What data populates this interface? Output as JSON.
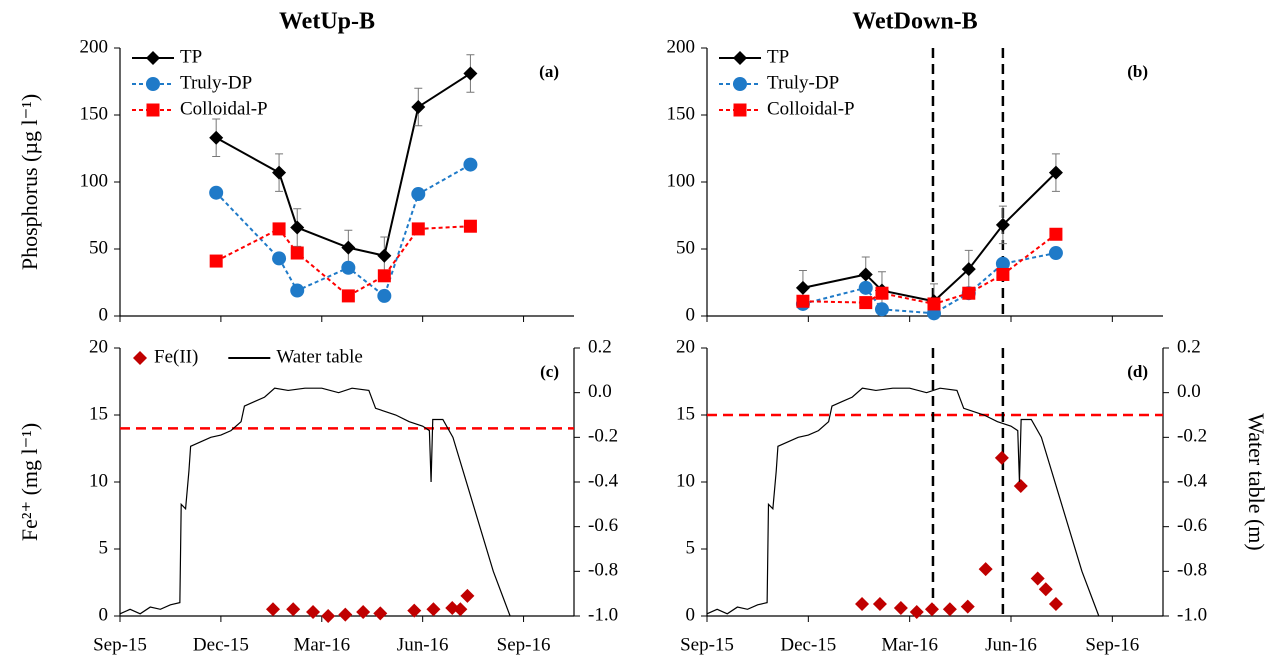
{
  "chart_data": [
    {
      "type": "line",
      "title": "WetUp-B",
      "panel_label": "(a)",
      "y_label": "Phosphorus (µg l⁻¹)",
      "x": [
        2.86,
        4.73,
        5.27,
        6.79,
        7.86,
        8.87,
        10.42
      ],
      "xlim": [
        0,
        13.5
      ],
      "xticks": [
        0,
        3,
        6,
        9,
        12
      ],
      "xtick_labels": false,
      "ylim": [
        0,
        200
      ],
      "yticks": [
        0,
        50,
        100,
        150,
        200
      ],
      "legend": "upper left",
      "legend_layout": "vertical",
      "series": [
        {
          "name": "TP",
          "color": "#000000",
          "marker": "diamond",
          "linestyle": "solid",
          "values": [
            133,
            107,
            66,
            51,
            45,
            156,
            181
          ],
          "errors": [
            14,
            14,
            14,
            13,
            14,
            14,
            14
          ]
        },
        {
          "name": "Truly-DP",
          "color": "#1f7ac8",
          "marker": "circle",
          "linestyle": "dashed",
          "values": [
            92,
            43,
            19,
            36,
            15,
            91,
            113
          ]
        },
        {
          "name": "Colloidal-P",
          "color": "#ff0000",
          "marker": "square",
          "linestyle": "dashed",
          "values": [
            41,
            65,
            47,
            15,
            30,
            65,
            67
          ]
        }
      ]
    },
    {
      "type": "line",
      "title": "WetDown-B",
      "panel_label": "(b)",
      "x": [
        2.84,
        4.7,
        5.18,
        6.72,
        7.75,
        8.76,
        10.33
      ],
      "xlim": [
        0,
        13.5
      ],
      "xticks": [
        0,
        3,
        6,
        9,
        12
      ],
      "xtick_labels": false,
      "ylim": [
        0,
        200
      ],
      "yticks": [
        0,
        50,
        100,
        150,
        200
      ],
      "legend": "upper left",
      "legend_layout": "vertical",
      "vlines": [
        {
          "value": 6.69,
          "color": "#000000"
        },
        {
          "value": 8.76,
          "color": "#000000"
        }
      ],
      "series": [
        {
          "name": "TP",
          "color": "#000000",
          "marker": "diamond",
          "linestyle": "solid",
          "values": [
            21,
            31,
            19,
            11,
            35,
            68,
            107
          ],
          "errors": [
            13,
            13,
            14,
            13,
            14,
            14,
            14
          ]
        },
        {
          "name": "Truly-DP",
          "color": "#1f7ac8",
          "marker": "circle",
          "linestyle": "dashed",
          "values": [
            9,
            21,
            5,
            2,
            17,
            39,
            47
          ]
        },
        {
          "name": "Colloidal-P",
          "color": "#ff0000",
          "marker": "square",
          "linestyle": "dashed",
          "values": [
            11,
            10,
            17,
            9,
            17,
            31,
            61
          ]
        }
      ]
    },
    {
      "type": "line",
      "panel_label": "(c)",
      "y_label": "Fe²⁺ (mg l⁻¹)",
      "xlim": [
        0,
        13.5
      ],
      "xticks": [
        {
          "value": 0,
          "label": "Sep-15"
        },
        {
          "value": 3,
          "label": "Dec-15"
        },
        {
          "value": 6,
          "label": "Mar-16"
        },
        {
          "value": 9,
          "label": "Jun-16"
        },
        {
          "value": 12,
          "label": "Sep-16"
        }
      ],
      "xtick_labels": true,
      "ylim": [
        0,
        20
      ],
      "yticks": [
        0,
        5,
        10,
        15,
        20
      ],
      "y2lim": [
        -1,
        0.2
      ],
      "y2ticks": [
        {
          "value": -1,
          "label": "-1.0"
        },
        -0.8,
        -0.6,
        -0.4,
        -0.2,
        {
          "value": 0,
          "label": "0.0"
        },
        0.2
      ],
      "legend": "upper left",
      "legend_layout": "horizontal",
      "hlines": [
        {
          "value": -0.16,
          "axis": "y2",
          "color": "#ff0000"
        }
      ],
      "series": [
        {
          "name": "Fe(II)",
          "color": "#c00000",
          "marker": "diamond",
          "linestyle": "none",
          "x": [
            4.55,
            5.15,
            5.74,
            6.19,
            6.7,
            7.23,
            7.74,
            8.75,
            9.32,
            9.88,
            10.12,
            10.33
          ],
          "values": [
            0.5,
            0.5,
            0.3,
            0.0,
            0.1,
            0.3,
            0.2,
            0.4,
            0.5,
            0.6,
            0.5,
            1.5
          ]
        },
        {
          "name": "Water table",
          "color": "#000000",
          "linestyle": "solid",
          "axis": "y2",
          "x": [
            0,
            0.3,
            0.6,
            0.9,
            1.2,
            1.5,
            1.78,
            1.82,
            1.95,
            2.05,
            2.1,
            2.4,
            2.7,
            3.0,
            3.3,
            3.6,
            3.7,
            4.0,
            4.3,
            4.6,
            5.0,
            5.5,
            6.0,
            6.5,
            6.9,
            7.4,
            7.6,
            8.2,
            8.6,
            9.0,
            9.2,
            9.25,
            9.3,
            9.6,
            9.9,
            10.2,
            10.5,
            10.8,
            11.1,
            11.4,
            11.6
          ],
          "values": [
            -0.99,
            -0.97,
            -0.99,
            -0.96,
            -0.97,
            -0.95,
            -0.94,
            -0.5,
            -0.52,
            -0.35,
            -0.24,
            -0.22,
            -0.2,
            -0.19,
            -0.17,
            -0.13,
            -0.06,
            -0.04,
            -0.02,
            0.02,
            0.01,
            0.02,
            0.02,
            0.0,
            0.02,
            0.01,
            -0.07,
            -0.1,
            -0.13,
            -0.15,
            -0.17,
            -0.4,
            -0.12,
            -0.12,
            -0.2,
            -0.35,
            -0.5,
            -0.65,
            -0.8,
            -0.92,
            -1.0
          ]
        }
      ]
    },
    {
      "type": "line",
      "panel_label": "(d)",
      "y2_label": "Water table (m)",
      "xlim": [
        0,
        13.5
      ],
      "xticks": [
        {
          "value": 0,
          "label": "Sep-15"
        },
        {
          "value": 3,
          "label": "Dec-15"
        },
        {
          "value": 6,
          "label": "Mar-16"
        },
        {
          "value": 9,
          "label": "Jun-16"
        },
        {
          "value": 12,
          "label": "Sep-16"
        }
      ],
      "xtick_labels": true,
      "ylim": [
        0,
        20
      ],
      "yticks": [
        0,
        5,
        10,
        15,
        20
      ],
      "y2lim": [
        -1,
        0.2
      ],
      "y2ticks": [
        {
          "value": -1,
          "label": "-1.0"
        },
        -0.8,
        -0.6,
        -0.4,
        -0.2,
        {
          "value": 0,
          "label": "0.0"
        },
        0.2
      ],
      "hlines": [
        {
          "value": -0.1,
          "axis": "y2",
          "color": "#ff0000"
        }
      ],
      "vlines": [
        {
          "value": 6.69,
          "color": "#000000"
        },
        {
          "value": 8.76,
          "color": "#000000"
        }
      ],
      "series": [
        {
          "name": "Fe(II)",
          "color": "#c00000",
          "marker": "diamond",
          "linestyle": "none",
          "x": [
            4.59,
            5.12,
            5.74,
            6.21,
            6.66,
            7.19,
            7.72,
            8.25,
            8.73,
            9.29,
            9.79,
            10.03,
            10.33
          ],
          "values": [
            0.9,
            0.9,
            0.6,
            0.3,
            0.5,
            0.5,
            0.7,
            3.5,
            11.8,
            9.7,
            2.8,
            2.0,
            0.9
          ]
        },
        {
          "name": "Water table",
          "color": "#000000",
          "linestyle": "solid",
          "axis": "y2",
          "x": [
            0,
            0.3,
            0.6,
            0.9,
            1.2,
            1.5,
            1.78,
            1.82,
            1.95,
            2.05,
            2.1,
            2.4,
            2.7,
            3.0,
            3.3,
            3.6,
            3.7,
            4.0,
            4.3,
            4.6,
            5.0,
            5.5,
            6.0,
            6.5,
            6.9,
            7.4,
            7.6,
            8.2,
            8.6,
            9.0,
            9.2,
            9.25,
            9.3,
            9.6,
            9.9,
            10.2,
            10.5,
            10.8,
            11.1,
            11.4,
            11.6
          ],
          "values": [
            -0.99,
            -0.97,
            -0.99,
            -0.96,
            -0.97,
            -0.95,
            -0.94,
            -0.5,
            -0.52,
            -0.35,
            -0.24,
            -0.22,
            -0.2,
            -0.19,
            -0.17,
            -0.13,
            -0.06,
            -0.04,
            -0.02,
            0.02,
            0.01,
            0.02,
            0.02,
            0.0,
            0.02,
            0.01,
            -0.07,
            -0.1,
            -0.13,
            -0.15,
            -0.17,
            -0.4,
            -0.12,
            -0.12,
            -0.2,
            -0.35,
            -0.5,
            -0.65,
            -0.8,
            -0.92,
            -1.0
          ]
        }
      ]
    }
  ]
}
